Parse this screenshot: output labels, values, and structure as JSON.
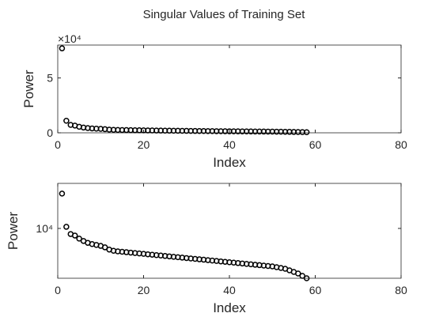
{
  "chart_data": [
    {
      "type": "scatter",
      "title": "Singular Values of Training Set",
      "x_label": "Index",
      "y_label": "Power",
      "y_exponent_label": "×10⁴",
      "x": [
        1,
        2,
        3,
        4,
        5,
        6,
        7,
        8,
        9,
        10,
        11,
        12,
        13,
        14,
        15,
        16,
        17,
        18,
        19,
        20,
        21,
        22,
        23,
        24,
        25,
        26,
        27,
        28,
        29,
        30,
        31,
        32,
        33,
        34,
        35,
        36,
        37,
        38,
        39,
        40,
        41,
        42,
        43,
        44,
        45,
        46,
        47,
        48,
        49,
        50,
        51,
        52,
        53,
        54,
        55,
        56,
        57,
        58
      ],
      "values": [
        77000,
        11000,
        7200,
        6600,
        5500,
        4800,
        4300,
        4000,
        3800,
        3600,
        3300,
        2900,
        2700,
        2610,
        2547,
        2485,
        2425,
        2366,
        2309,
        2253,
        2198,
        2145,
        2093,
        2043,
        1993,
        1945,
        1898,
        1852,
        1807,
        1763,
        1721,
        1679,
        1638,
        1599,
        1560,
        1522,
        1485,
        1449,
        1414,
        1380,
        1347,
        1314,
        1282,
        1251,
        1221,
        1191,
        1163,
        1134,
        1107,
        1080,
        1034,
        987,
        940,
        858,
        782,
        713,
        621,
        540
      ],
      "color": "#000000",
      "xlim": [
        0,
        80
      ],
      "xticks": [
        0,
        20,
        40,
        60,
        80
      ],
      "ylim": [
        0,
        80000
      ],
      "yticks": [
        0,
        {
          "value": 50000,
          "label": "5"
        }
      ],
      "log_y": false
    },
    {
      "type": "scatter",
      "x_label": "Index",
      "y_label": "Power",
      "x": [
        1,
        2,
        3,
        4,
        5,
        6,
        7,
        8,
        9,
        10,
        11,
        12,
        13,
        14,
        15,
        16,
        17,
        18,
        19,
        20,
        21,
        22,
        23,
        24,
        25,
        26,
        27,
        28,
        29,
        30,
        31,
        32,
        33,
        34,
        35,
        36,
        37,
        38,
        39,
        40,
        41,
        42,
        43,
        44,
        45,
        46,
        47,
        48,
        49,
        50,
        51,
        52,
        53,
        54,
        55,
        56,
        57,
        58
      ],
      "values": [
        77000,
        11000,
        7200,
        6600,
        5500,
        4800,
        4300,
        4000,
        3800,
        3600,
        3300,
        2900,
        2700,
        2610,
        2547,
        2485,
        2425,
        2366,
        2309,
        2253,
        2198,
        2145,
        2093,
        2043,
        1993,
        1945,
        1898,
        1852,
        1807,
        1763,
        1721,
        1679,
        1638,
        1599,
        1560,
        1522,
        1485,
        1449,
        1414,
        1380,
        1347,
        1314,
        1282,
        1251,
        1221,
        1191,
        1163,
        1134,
        1107,
        1080,
        1034,
        987,
        940,
        858,
        782,
        713,
        621,
        540
      ],
      "color": "#000000",
      "xlim": [
        0,
        80
      ],
      "xticks": [
        0,
        20,
        40,
        60,
        80
      ],
      "ylim": [
        540,
        140000
      ],
      "yticks": [
        {
          "value": 10000,
          "label": "10⁴"
        }
      ],
      "log_y": true
    }
  ]
}
